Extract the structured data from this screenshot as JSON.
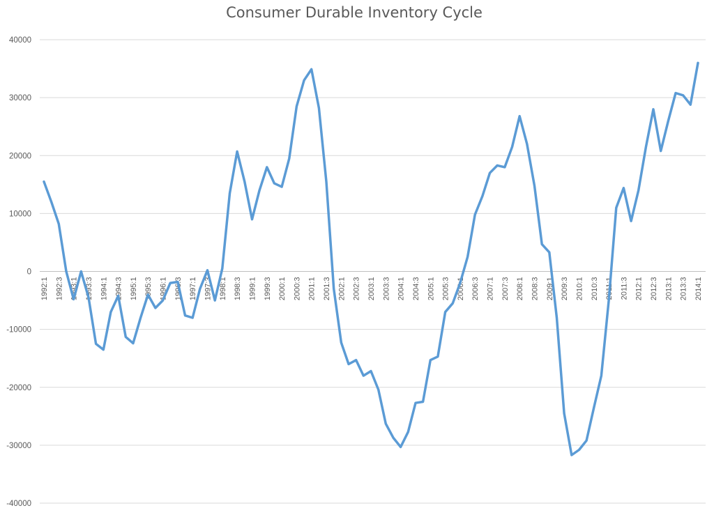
{
  "chart_data": {
    "type": "line",
    "title": "Consumer Durable Inventory Cycle",
    "xlabel": "",
    "ylabel": "",
    "ylim": [
      -40000,
      40000
    ],
    "yticks": [
      40000,
      30000,
      20000,
      10000,
      0,
      -10000,
      -20000,
      -30000,
      -40000
    ],
    "grid": true,
    "legend": "none",
    "line_color": "#5b9bd5",
    "tick_label_step": 2,
    "categories": [
      "1992:1",
      "1992:2",
      "1992:3",
      "1992:4",
      "1993:1",
      "1993:2",
      "1993:3",
      "1993:4",
      "1994:1",
      "1994:2",
      "1994:3",
      "1994:4",
      "1995:1",
      "1995:2",
      "1995:3",
      "1995:4",
      "1996:1",
      "1996:2",
      "1996:3",
      "1996:4",
      "1997:1",
      "1997:2",
      "1997:3",
      "1997:4",
      "1998:1",
      "1998:2",
      "1998:3",
      "1998:4",
      "1999:1",
      "1999:2",
      "1999:3",
      "1999:4",
      "2000:1",
      "2000:2",
      "2000:3",
      "2000:4",
      "2001:1",
      "2001:2",
      "2001:3",
      "2001:4",
      "2002:1",
      "2002:2",
      "2002:3",
      "2002:4",
      "2003:1",
      "2003:2",
      "2003:3",
      "2003:4",
      "2004:1",
      "2004:2",
      "2004:3",
      "2004:4",
      "2005:1",
      "2005:2",
      "2005:3",
      "2005:4",
      "2006:1",
      "2006:2",
      "2006:3",
      "2006:4",
      "2007:1",
      "2007:2",
      "2007:3",
      "2007:4",
      "2008:1",
      "2008:2",
      "2008:3",
      "2008:4",
      "2009:1",
      "2009:2",
      "2009:3",
      "2009:4",
      "2010:1",
      "2010:2",
      "2010:3",
      "2010:4",
      "2011:1",
      "2011:2",
      "2011:3",
      "2011:4",
      "2012:1",
      "2012:2",
      "2012:3",
      "2012:4",
      "2013:1",
      "2013:2",
      "2013:3",
      "2013:4",
      "2014:1"
    ],
    "series": [
      {
        "values": [
          15500,
          12000,
          8200,
          0,
          -4800,
          0,
          -4500,
          -12500,
          -13500,
          -7000,
          -4200,
          -11300,
          -12400,
          -8000,
          -4000,
          -6300,
          -5000,
          -2000,
          -1800,
          -7600,
          -8000,
          -3000,
          200,
          -5000,
          500,
          13500,
          20700,
          15500,
          9000,
          14000,
          18000,
          15200,
          14600,
          19500,
          28500,
          33000,
          34900,
          28200,
          15500,
          -3000,
          -12300,
          -16000,
          -15300,
          -18000,
          -17200,
          -20400,
          -26300,
          -28700,
          -30300,
          -27700,
          -22700,
          -22500,
          -15300,
          -14700,
          -7000,
          -5500,
          -2000,
          2500,
          9800,
          13000,
          17000,
          18300,
          18000,
          21500,
          26800,
          22000,
          14800,
          4700,
          3300,
          -8000,
          -24500,
          -31700,
          -30800,
          -29200,
          -23500,
          -18000,
          -5000,
          11000,
          14400,
          8700,
          14000,
          21500,
          28000,
          20800,
          26000,
          30800,
          30400,
          28800,
          36000
        ]
      }
    ]
  }
}
